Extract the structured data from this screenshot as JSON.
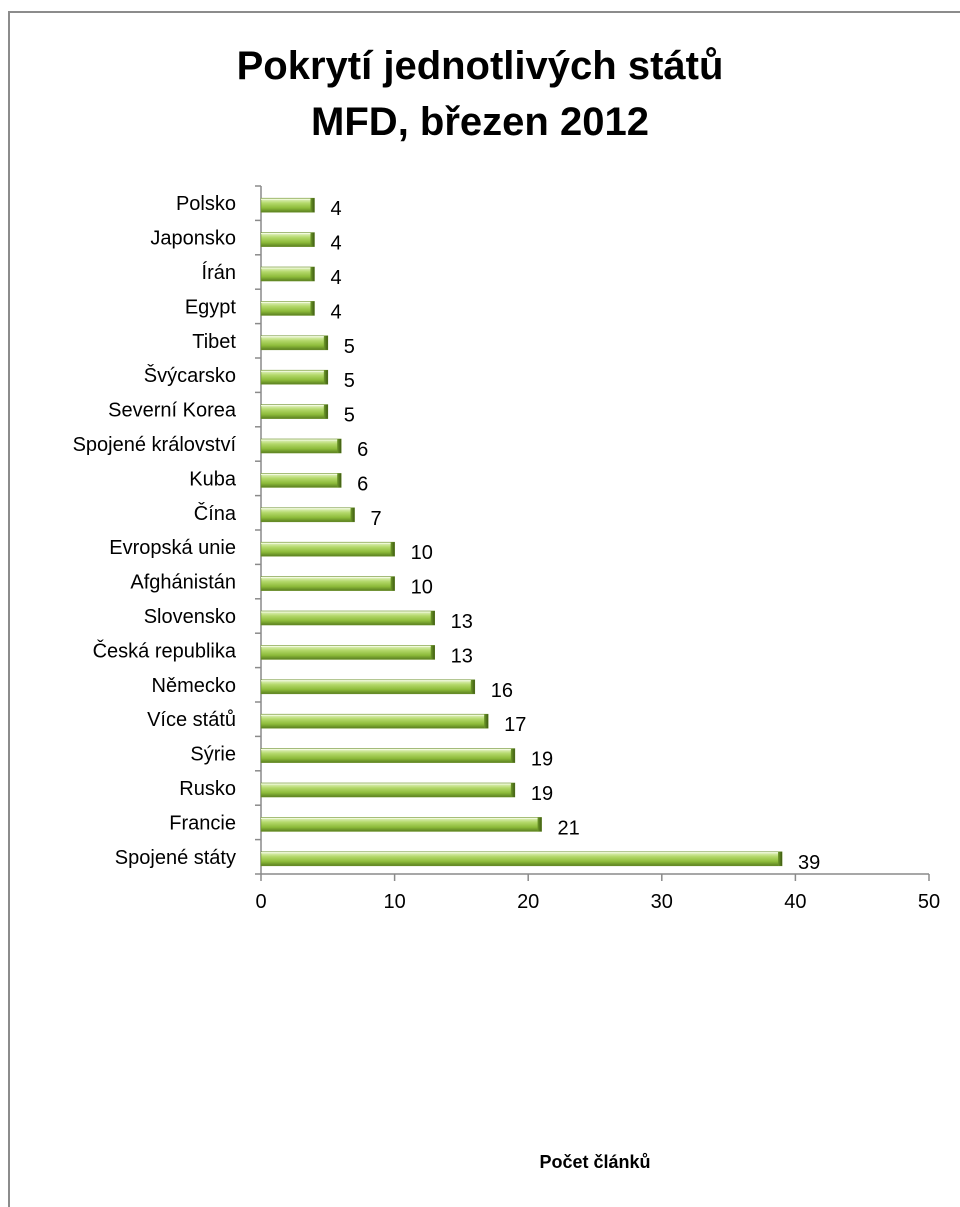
{
  "chart_data": {
    "type": "bar",
    "orientation": "horizontal",
    "title_lines": [
      "Pokrytí jednotlivých států",
      "MFD, březen 2012"
    ],
    "xlabel": "Počet článků",
    "ylabel": "",
    "xlim": [
      0,
      50
    ],
    "x_ticks": [
      0,
      10,
      20,
      30,
      40,
      50
    ],
    "categories": [
      "Spojené státy",
      "Francie",
      "Rusko",
      "Sýrie",
      "Více států",
      "Německo",
      "Česká republika",
      "Slovensko",
      "Afghánistán",
      "Evropská unie",
      "Čína",
      "Kuba",
      "Spojené království",
      "Severní Korea",
      "Švýcarsko",
      "Tibet",
      "Egypt",
      "Írán",
      "Japonsko",
      "Polsko"
    ],
    "values": [
      39,
      21,
      19,
      19,
      17,
      16,
      13,
      13,
      10,
      10,
      7,
      6,
      6,
      5,
      5,
      5,
      4,
      4,
      4,
      4
    ],
    "data_labels": true,
    "grid": false,
    "legend": "none",
    "bar_color": "#8fbd3a"
  }
}
